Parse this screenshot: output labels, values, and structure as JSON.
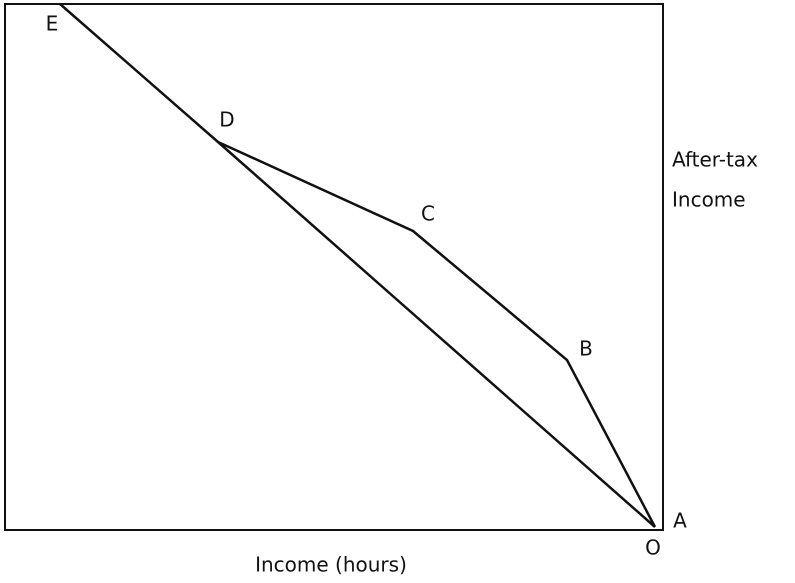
{
  "points": [
    {
      "label": "E"
    },
    {
      "label": "D"
    },
    {
      "label": "C"
    },
    {
      "label": "B"
    },
    {
      "label": "A"
    },
    {
      "label": "O"
    }
  ],
  "y_axis_label": [
    "After-tax",
    "Income"
  ],
  "x_axis_label": "Income (hours)"
}
